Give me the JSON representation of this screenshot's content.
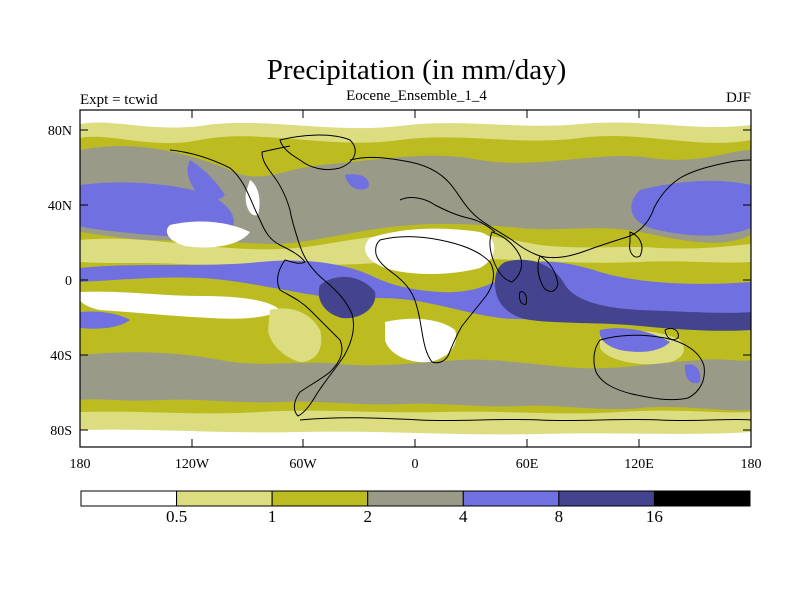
{
  "title": "Precipitation (in mm/day)",
  "left_label": "Expt = tcwid",
  "center_label": "Eocene_Ensemble_1_4",
  "right_label": "DJF",
  "lat_ticks": [
    "80N",
    "40N",
    "0",
    "40S",
    "80S"
  ],
  "lon_ticks": [
    "180",
    "120W",
    "60W",
    "0",
    "60E",
    "120E",
    "180"
  ],
  "colorbar": {
    "labels": [
      "0.5",
      "1",
      "2",
      "4",
      "8",
      "16"
    ],
    "colors": [
      "#ffffff",
      "#dcdc80",
      "#bcbc20",
      "#9a9a88",
      "#7070e0",
      "#44448e",
      "#000000"
    ]
  }
}
